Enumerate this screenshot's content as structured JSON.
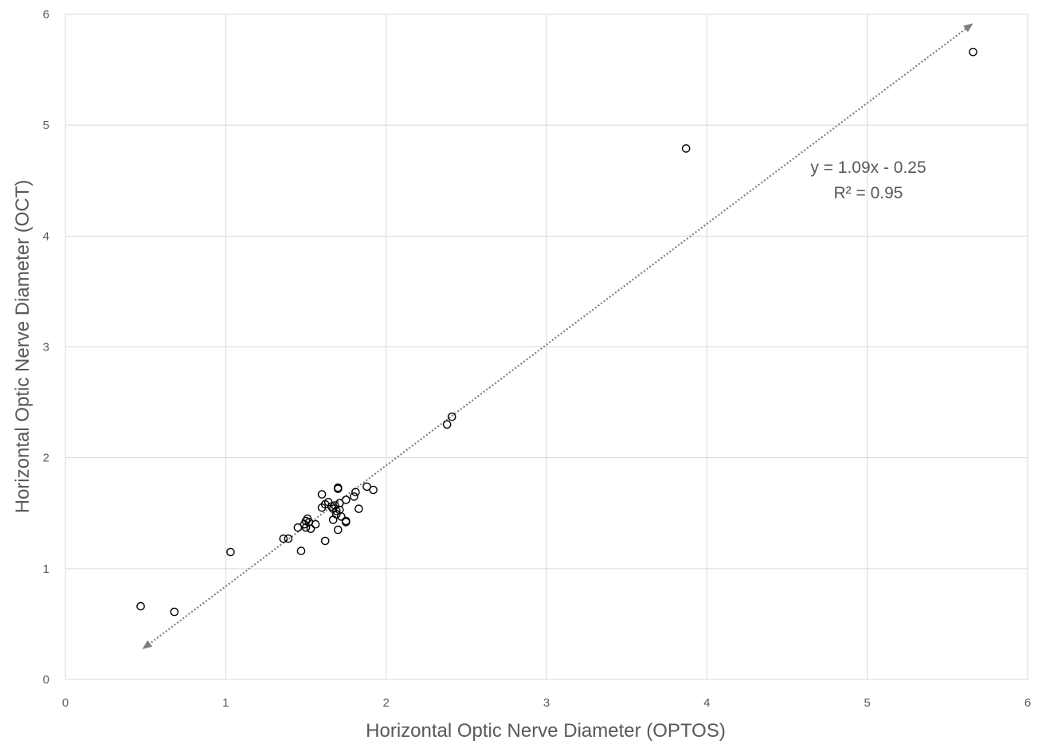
{
  "chart_data": {
    "type": "scatter",
    "title": "",
    "xlabel": "Horizontal Optic Nerve Diameter (OPTOS)",
    "ylabel": "Horizontal Optic Nerve Diameter (OCT)",
    "xlim": [
      0,
      6
    ],
    "ylim": [
      0,
      6
    ],
    "xticks": [
      "0",
      "1",
      "2",
      "3",
      "4",
      "5",
      "6"
    ],
    "yticks": [
      "0",
      "1",
      "2",
      "3",
      "4",
      "5",
      "6"
    ],
    "grid": true,
    "legend": "none",
    "colors": {
      "grid": "#d9d9d9",
      "marker": "#000000",
      "trendline": "#7f7f7f",
      "text": "#595959"
    },
    "points": [
      [
        0.47,
        0.66
      ],
      [
        0.68,
        0.61
      ],
      [
        1.03,
        1.15
      ],
      [
        1.36,
        1.27
      ],
      [
        1.39,
        1.27
      ],
      [
        1.45,
        1.37
      ],
      [
        1.47,
        1.16
      ],
      [
        1.49,
        1.4
      ],
      [
        1.5,
        1.37
      ],
      [
        1.5,
        1.43
      ],
      [
        1.51,
        1.45
      ],
      [
        1.52,
        1.42
      ],
      [
        1.53,
        1.36
      ],
      [
        1.56,
        1.4
      ],
      [
        1.6,
        1.55
      ],
      [
        1.6,
        1.67
      ],
      [
        1.62,
        1.25
      ],
      [
        1.62,
        1.58
      ],
      [
        1.64,
        1.6
      ],
      [
        1.66,
        1.56
      ],
      [
        1.67,
        1.44
      ],
      [
        1.67,
        1.54
      ],
      [
        1.68,
        1.57
      ],
      [
        1.69,
        1.52
      ],
      [
        1.69,
        1.49
      ],
      [
        1.7,
        1.35
      ],
      [
        1.7,
        1.72
      ],
      [
        1.7,
        1.73
      ],
      [
        1.71,
        1.59
      ],
      [
        1.71,
        1.53
      ],
      [
        1.72,
        1.47
      ],
      [
        1.75,
        1.42
      ],
      [
        1.75,
        1.43
      ],
      [
        1.75,
        1.62
      ],
      [
        1.8,
        1.65
      ],
      [
        1.81,
        1.69
      ],
      [
        1.83,
        1.54
      ],
      [
        1.88,
        1.74
      ],
      [
        1.92,
        1.71
      ],
      [
        2.38,
        2.3
      ],
      [
        2.41,
        2.37
      ],
      [
        3.87,
        4.79
      ],
      [
        5.66,
        5.66
      ]
    ],
    "trendline": {
      "slope": 1.09,
      "intercept": -0.25,
      "x_range": [
        0.48,
        5.66
      ],
      "equation": "y = 1.09x - 0.25",
      "r_squared": "R² = 0.95"
    }
  }
}
